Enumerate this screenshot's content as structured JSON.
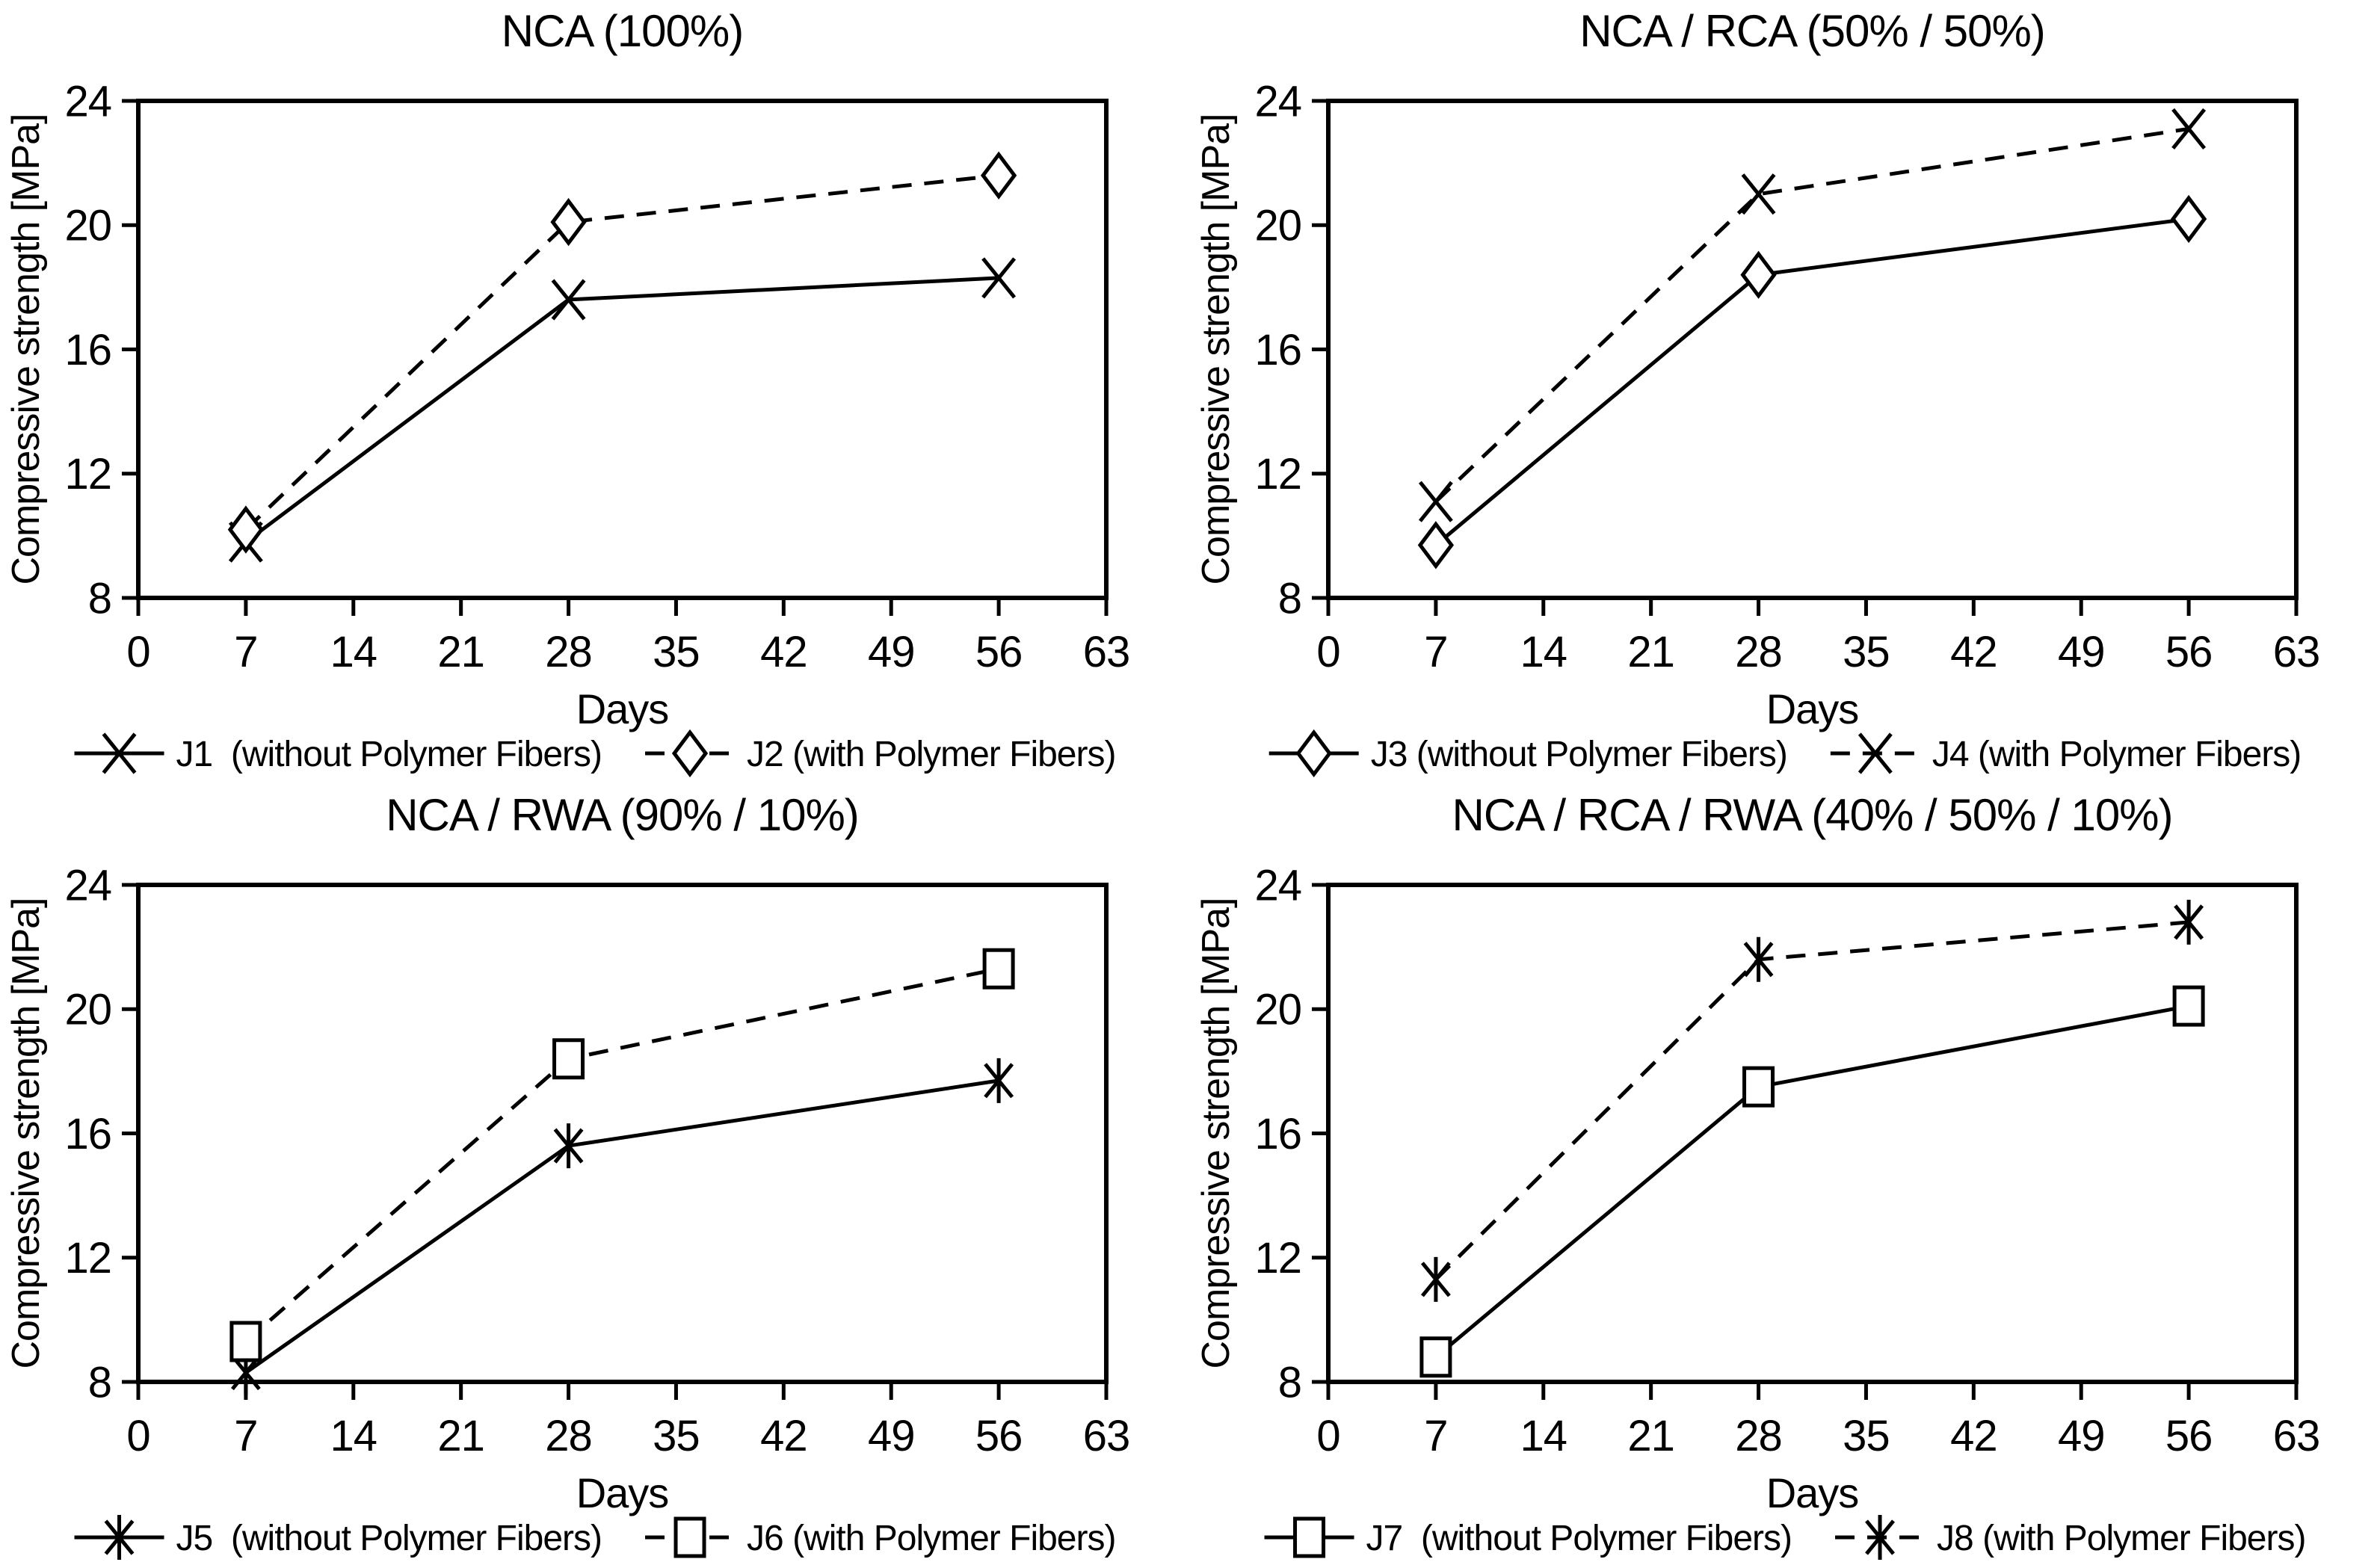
{
  "style": {
    "background": "#ffffff",
    "line_color": "#000000",
    "text_color": "#000000",
    "marker_fill": "#ffffff"
  },
  "chart_data": [
    {
      "type": "line",
      "title": "NCA (100%)",
      "xlabel": "Days",
      "ylabel": "Compressive strength [MPa]",
      "x": [
        7,
        28,
        56
      ],
      "xlim": [
        0,
        63
      ],
      "ylim": [
        8,
        24
      ],
      "x_ticks": [
        0,
        7,
        14,
        21,
        28,
        35,
        42,
        49,
        56,
        63
      ],
      "y_ticks": [
        8,
        12,
        16,
        20,
        24
      ],
      "grid": false,
      "legend_position": "bottom",
      "series": [
        {
          "name": "J1  (without Polymer Fibers)",
          "marker": "x",
          "line_style": "solid",
          "values": [
            9.8,
            17.6,
            18.3
          ]
        },
        {
          "name": "J2 (with Polymer Fibers)",
          "marker": "diamond",
          "line_style": "dashed",
          "values": [
            10.2,
            20.1,
            21.6
          ]
        }
      ]
    },
    {
      "type": "line",
      "title": "NCA / RCA (50% / 50%)",
      "xlabel": "Days",
      "ylabel": "Compressive strength [MPa]",
      "x": [
        7,
        28,
        56
      ],
      "xlim": [
        0,
        63
      ],
      "ylim": [
        8,
        24
      ],
      "x_ticks": [
        0,
        7,
        14,
        21,
        28,
        35,
        42,
        49,
        56,
        63
      ],
      "y_ticks": [
        8,
        12,
        16,
        20,
        24
      ],
      "grid": false,
      "legend_position": "bottom",
      "series": [
        {
          "name": "J3 (without Polymer Fibers)",
          "marker": "diamond",
          "line_style": "solid",
          "values": [
            9.7,
            18.4,
            20.2
          ]
        },
        {
          "name": "J4 (with Polymer Fibers)",
          "marker": "x",
          "line_style": "dashed",
          "values": [
            11.1,
            21.0,
            23.1
          ]
        }
      ]
    },
    {
      "type": "line",
      "title": "NCA / RWA (90% / 10%)",
      "xlabel": "Days",
      "ylabel": "Compressive strength [MPa]",
      "x": [
        7,
        28,
        56
      ],
      "xlim": [
        0,
        63
      ],
      "ylim": [
        8,
        24
      ],
      "x_ticks": [
        0,
        7,
        14,
        21,
        28,
        35,
        42,
        49,
        56,
        63
      ],
      "y_ticks": [
        8,
        12,
        16,
        20,
        24
      ],
      "grid": false,
      "legend_position": "bottom",
      "series": [
        {
          "name": "J5  (without Polymer Fibers)",
          "marker": "asterisk",
          "line_style": "solid",
          "values": [
            8.3,
            15.6,
            17.7
          ]
        },
        {
          "name": "J6 (with Polymer Fibers)",
          "marker": "square",
          "line_style": "dashed",
          "values": [
            9.3,
            18.4,
            21.3
          ]
        }
      ]
    },
    {
      "type": "line",
      "title": "NCA / RCA / RWA (40% / 50% / 10%)",
      "xlabel": "Days",
      "ylabel": "Compressive strength [MPa]",
      "x": [
        7,
        28,
        56
      ],
      "xlim": [
        0,
        63
      ],
      "ylim": [
        8,
        24
      ],
      "x_ticks": [
        0,
        7,
        14,
        21,
        28,
        35,
        42,
        49,
        56,
        63
      ],
      "y_ticks": [
        8,
        12,
        16,
        20,
        24
      ],
      "grid": false,
      "legend_position": "bottom",
      "series": [
        {
          "name": "J7  (without Polymer Fibers)",
          "marker": "square",
          "line_style": "solid",
          "values": [
            8.8,
            17.5,
            20.1
          ]
        },
        {
          "name": "J8 (with Polymer Fibers)",
          "marker": "asterisk",
          "line_style": "dashed",
          "values": [
            11.3,
            21.6,
            22.8
          ]
        }
      ]
    }
  ]
}
